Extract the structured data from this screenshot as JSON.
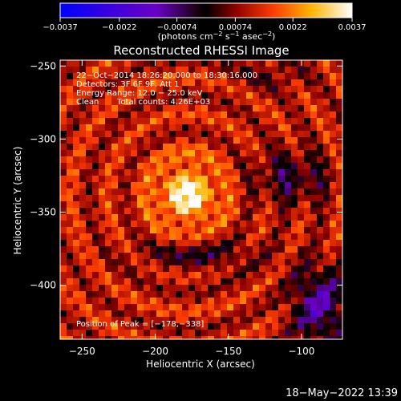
{
  "chart_data": {
    "type": "heatmap",
    "title": "Reconstructed RHESSI Image",
    "xlabel": "Heliocentric X (arcsec)",
    "ylabel": "Heliocentric Y (arcsec)",
    "xlim": [
      -265,
      -72
    ],
    "ylim": [
      -437,
      -246
    ],
    "xticks": [
      -250,
      -200,
      -150,
      -100
    ],
    "yticks": [
      -250,
      -300,
      -350,
      -400
    ],
    "xtick_labels": [
      "−250",
      "−200",
      "−150",
      "−100"
    ],
    "ytick_labels": [
      "−250",
      "−300",
      "−350",
      "−400"
    ],
    "colorbar": {
      "range": [
        -0.0037,
        0.0037
      ],
      "ticks": [
        -0.0037,
        -0.0022,
        -0.00074,
        0.00074,
        0.0022,
        0.0037
      ],
      "tick_labels": [
        "−0.0037",
        "−0.0022",
        "−0.00074",
        "0.00074",
        "0.0022",
        "0.0037"
      ],
      "units_prefix": "(photons cm",
      "units_exp1": "−2",
      "units_mid": " s",
      "units_exp2": "−1",
      "units_mid2": " asec",
      "units_exp3": "−2",
      "units_suffix": ")",
      "colors": [
        "#0000ff",
        "#6a00c8",
        "#000000",
        "#8c0000",
        "#ff3c00",
        "#ffb400",
        "#ffffff"
      ]
    },
    "annotations": {
      "time_range": "22−Oct−2014 18:26:20.000 to 18:30:16.000",
      "detectors": "Detectors: 3F 6F 9F, Att 1",
      "energy_range": "Energy Range: 12.0 − 25.0 keV",
      "clean_label": "Clean",
      "total_counts": "Total counts: 4.26E+03",
      "peak_position": "Position of Peak = [−178,−338]"
    },
    "peak": {
      "x": -178,
      "y": -338
    },
    "grid": false
  },
  "footer": {
    "timestamp": "18−May−2022 13:39"
  }
}
